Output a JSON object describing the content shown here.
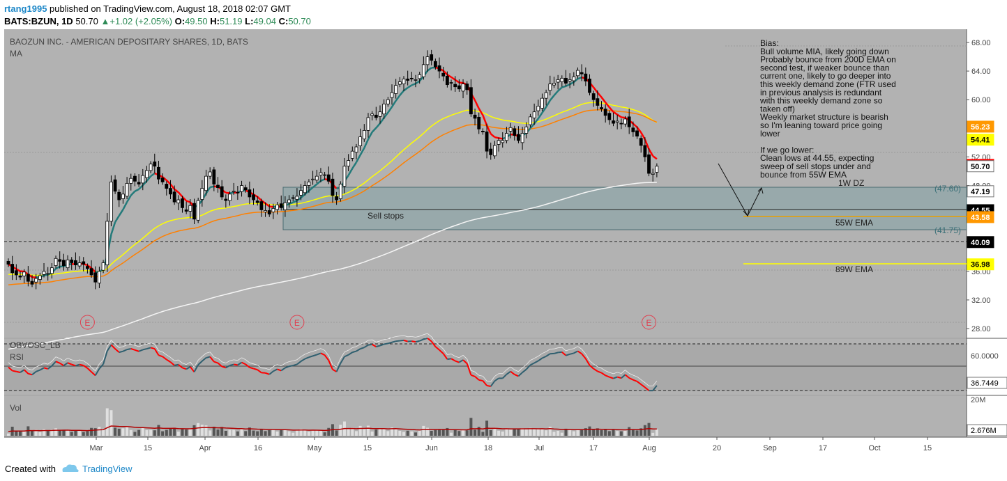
{
  "header": {
    "user": "rtang1995",
    "published_text": "published on TradingView.com, August 18, 2018 02:07 GMT",
    "symbol": "BATS:BZUN, 1D",
    "last": "50.70",
    "change": "+1.02 (+2.05%)",
    "o_label": "O:",
    "o": "49.50",
    "h_label": "H:",
    "h": "51.19",
    "l_label": "L:",
    "l": "49.04",
    "c_label": "C:",
    "c": "50.70"
  },
  "chart_data": {
    "type": "candlestick",
    "title": "BAOZUN INC. - AMERICAN DEPOSITARY SHARES, 1D, BATS",
    "indicator_label": "MA",
    "y_ticks": [
      "68.00",
      "64.00",
      "60.00",
      "56.00",
      "52.00",
      "48.00",
      "44.00",
      "40.00",
      "36.00",
      "32.00",
      "28.00"
    ],
    "y_range": [
      27,
      69
    ],
    "x_ticks": [
      "Mar",
      "15",
      "Apr",
      "16",
      "May",
      "15",
      "Jun",
      "18",
      "Jul",
      "17",
      "Aug",
      "20",
      "Sep",
      "17",
      "Oct",
      "15"
    ],
    "price_badges": [
      {
        "value": "56.23",
        "bg": "#ff9800",
        "fg": "#ffffff"
      },
      {
        "value": "54.41",
        "bg": "#ffff00",
        "fg": "#000000"
      },
      {
        "value": "50.88",
        "bg": "#ff0000",
        "fg": "#ffffff"
      },
      {
        "value": "50.70",
        "bg": "#ffffff",
        "fg": "#000000"
      },
      {
        "value": "47.19",
        "bg": "#ffffff",
        "fg": "#000000"
      },
      {
        "value": "44.55",
        "bg": "#000000",
        "fg": "#ffffff"
      },
      {
        "value": "43.58",
        "bg": "#ff9800",
        "fg": "#ffffff"
      },
      {
        "value": "40.09",
        "bg": "#000000",
        "fg": "#ffffff"
      },
      {
        "value": "36.98",
        "bg": "#ffff00",
        "fg": "#000000"
      }
    ],
    "zone_labels": {
      "top": "(47.60)",
      "bottom": "(41.75)",
      "zone_name": "1W DZ",
      "ema55": "55W EMA",
      "ema89": "89W EMA",
      "sell_stops": "Sell stops"
    },
    "earnings_marker": "E",
    "annotation_lines": [
      "Bias:",
      "Bull volume MIA, likely going down",
      "Probably bounce from 200D EMA on",
      "second test, if weaker bounce than",
      "current one, likely to go deeper into",
      "this weekly demand zone (FTR used",
      "in previous analysis is redundant",
      "with this weekly demand zone so",
      "taken off)",
      "Weekly market structure is bearish",
      "so I'm leaning toward price going",
      "lower",
      "",
      "If we go lower:",
      "Clean lows at 44.55, expecting",
      "sweep of sell stops under and",
      "bounce from 55W EMA"
    ],
    "closes": [
      37.0,
      35.8,
      35.5,
      35.2,
      35.9,
      34.6,
      34.2,
      35.0,
      35.4,
      36.0,
      35.7,
      36.5,
      37.8,
      37.4,
      36.8,
      37.6,
      37.2,
      36.9,
      37.2,
      37.0,
      36.4,
      35.5,
      34.5,
      36.0,
      37.2,
      43.0,
      48.5,
      47.2,
      46.0,
      46.8,
      48.3,
      49.0,
      48.6,
      48.2,
      49.4,
      50.1,
      51.0,
      50.7,
      48.9,
      48.5,
      47.6,
      46.8,
      45.7,
      46.0,
      44.9,
      44.4,
      45.2,
      43.3,
      45.9,
      47.6,
      49.3,
      49.9,
      48.2,
      47.7,
      46.4,
      45.9,
      46.8,
      47.2,
      47.0,
      48.0,
      47.4,
      46.4,
      46.0,
      45.6,
      44.6,
      44.5,
      44.0,
      44.8,
      45.3,
      44.9,
      45.6,
      46.0,
      46.2,
      46.5,
      47.3,
      48.0,
      48.5,
      48.9,
      49.3,
      49.8,
      49.5,
      48.6,
      46.6,
      46.0,
      48.2,
      50.7,
      51.5,
      52.8,
      53.4,
      54.8,
      55.7,
      57.5,
      58.0,
      57.5,
      58.3,
      59.4,
      60.0,
      61.0,
      62.0,
      62.5,
      62.9,
      62.7,
      62.9,
      62.8,
      63.5,
      64.9,
      66.0,
      65.5,
      64.6,
      64.0,
      63.3,
      62.1,
      62.3,
      61.8,
      61.5,
      62.2,
      61.4,
      58.0,
      57.4,
      55.9,
      55.5,
      52.8,
      52.3,
      53.6,
      54.3,
      54.3,
      55.3,
      56.1,
      55.0,
      54.3,
      55.3,
      56.2,
      57.6,
      58.3,
      59.1,
      60.2,
      61.0,
      62.2,
      62.3,
      62.8,
      63.0,
      62.3,
      62.8,
      63.2,
      64.1,
      63.6,
      62.6,
      61.0,
      60.0,
      59.2,
      58.7,
      57.8,
      57.2,
      56.7,
      57.0,
      56.6,
      57.3,
      56.2,
      55.5,
      54.9,
      53.6,
      52.0,
      49.7,
      49.7,
      50.7
    ],
    "earnings_markers_at_index": [
      20,
      73,
      162
    ]
  },
  "oscillator": {
    "labels": [
      "OBVOSC_LB",
      "RSI"
    ],
    "y_ticks": [
      "60.0000"
    ],
    "last_value": "36.7449"
  },
  "volume": {
    "label": "Vol",
    "y_ticks": [
      "20M"
    ],
    "last_value": "2.676M"
  },
  "footer": {
    "created_with": "Created with",
    "brand": "TradingView"
  }
}
